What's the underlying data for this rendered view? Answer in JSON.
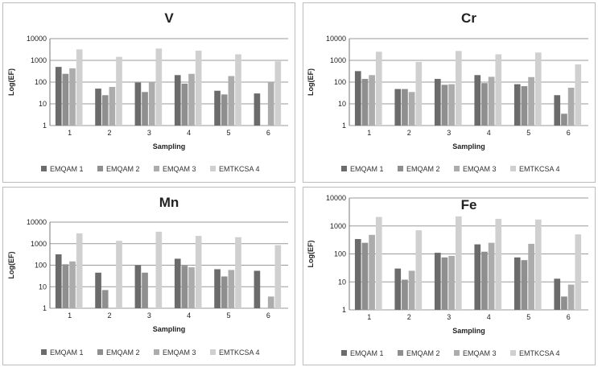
{
  "colors": {
    "series": [
      "#6b6b6b",
      "#8f8f8f",
      "#acacac",
      "#d0d0d0"
    ],
    "grid": "#9a9a9a"
  },
  "chart_data": [
    {
      "type": "bar",
      "title": "V",
      "xlabel": "Sampling",
      "ylabel": "Log(EF)",
      "yscale": "log",
      "ylim": [
        1,
        10000
      ],
      "yticks": [
        "1",
        "10",
        "100",
        "1000",
        "10000"
      ],
      "grid": true,
      "legend": "bottom",
      "categories": [
        "1",
        "2",
        "3",
        "4",
        "5",
        "6"
      ],
      "series": [
        {
          "name": "EMQAM 1",
          "values": [
            500,
            50,
            95,
            210,
            40,
            30
          ]
        },
        {
          "name": "EMQAM 2",
          "values": [
            240,
            25,
            35,
            85,
            27,
            null
          ]
        },
        {
          "name": "EMQAM 3",
          "values": [
            430,
            60,
            95,
            240,
            190,
            95
          ]
        },
        {
          "name": "EMTKCSA 4",
          "values": [
            3200,
            1450,
            3500,
            2800,
            1900,
            900
          ]
        }
      ]
    },
    {
      "type": "bar",
      "title": "Cr",
      "xlabel": "Sampling",
      "ylabel": "Log(EF)",
      "yscale": "log",
      "ylim": [
        1,
        10000
      ],
      "yticks": [
        "1",
        "10",
        "100",
        "1000",
        "10000"
      ],
      "grid": true,
      "legend": "bottom",
      "categories": [
        "1",
        "2",
        "3",
        "4",
        "5",
        "6"
      ],
      "series": [
        {
          "name": "EMQAM 1",
          "values": [
            320,
            48,
            140,
            210,
            80,
            25
          ]
        },
        {
          "name": "EMQAM 2",
          "values": [
            140,
            48,
            75,
            90,
            65,
            3.5
          ]
        },
        {
          "name": "EMQAM 3",
          "values": [
            210,
            35,
            80,
            175,
            170,
            55
          ]
        },
        {
          "name": "EMTKCSA 4",
          "values": [
            2500,
            850,
            2700,
            1900,
            2300,
            650
          ]
        }
      ]
    },
    {
      "type": "bar",
      "title": "Mn",
      "xlabel": "Sampling",
      "ylabel": "Log(EF)",
      "yscale": "log",
      "ylim": [
        1,
        10000
      ],
      "yticks": [
        "1",
        "10",
        "100",
        "1000",
        "10000"
      ],
      "grid": true,
      "legend": "bottom",
      "categories": [
        "1",
        "2",
        "3",
        "4",
        "5",
        "6"
      ],
      "series": [
        {
          "name": "EMQAM 1",
          "values": [
            320,
            45,
            100,
            200,
            65,
            55
          ]
        },
        {
          "name": "EMQAM 2",
          "values": [
            110,
            7,
            45,
            95,
            30,
            null
          ]
        },
        {
          "name": "EMQAM 3",
          "values": [
            150,
            null,
            null,
            80,
            60,
            3.5
          ]
        },
        {
          "name": "EMTKCSA 4",
          "values": [
            3000,
            1350,
            3600,
            2300,
            2000,
            850
          ]
        }
      ]
    },
    {
      "type": "bar",
      "title": "Fe",
      "xlabel": "Sampling",
      "ylabel": "Log(EF)",
      "yscale": "log",
      "ylim": [
        1,
        10000
      ],
      "yticks": [
        "1",
        "10",
        "100",
        "1000",
        "10000"
      ],
      "grid": true,
      "legend": "bottom",
      "categories": [
        "1",
        "2",
        "3",
        "4",
        "5",
        "6"
      ],
      "series": [
        {
          "name": "EMQAM 1",
          "values": [
            340,
            30,
            110,
            220,
            75,
            13
          ]
        },
        {
          "name": "EMQAM 2",
          "values": [
            250,
            12,
            75,
            120,
            60,
            3
          ]
        },
        {
          "name": "EMQAM 3",
          "values": [
            480,
            25,
            85,
            250,
            230,
            8
          ]
        },
        {
          "name": "EMTKCSA 4",
          "values": [
            2100,
            700,
            2200,
            1800,
            1700,
            500
          ]
        }
      ]
    }
  ]
}
